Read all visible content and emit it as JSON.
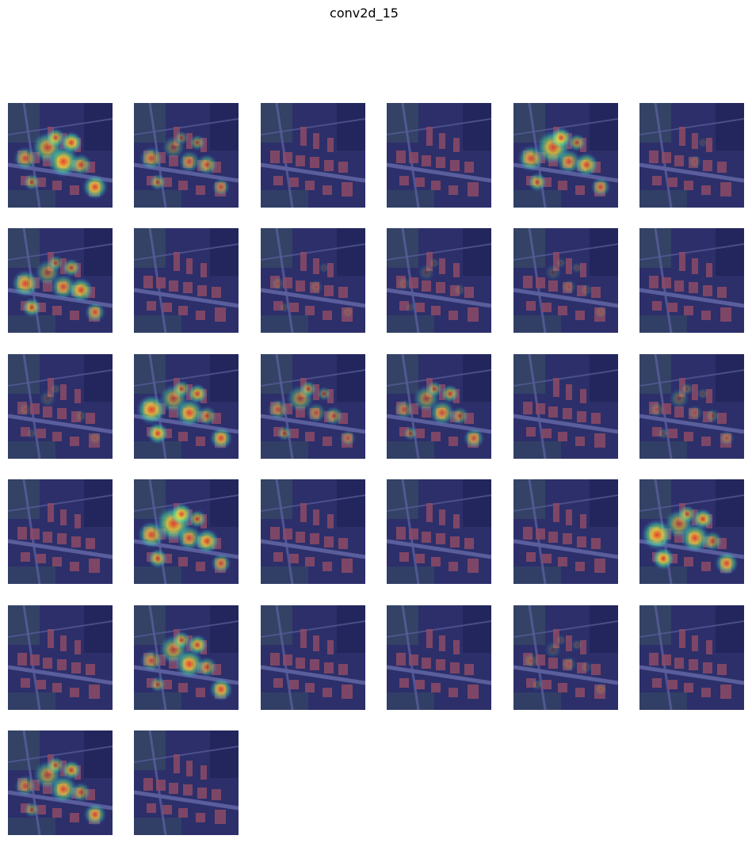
{
  "figure": {
    "title": "conv2d_15"
  },
  "overlay": {
    "colormap": "jet",
    "base_colors": {
      "background": "#2b2f55",
      "roof": "#b2544f",
      "road": "#6b6f9a",
      "vegetation": "#3c5a4a",
      "shadow": "#1c1f3d"
    }
  },
  "feature_maps": [
    {
      "index": 0,
      "activation": 0.85
    },
    {
      "index": 1,
      "activation": 0.55
    },
    {
      "index": 2,
      "activation": 0.05
    },
    {
      "index": 3,
      "activation": 0.05
    },
    {
      "index": 4,
      "activation": 0.8
    },
    {
      "index": 5,
      "activation": 0.08
    },
    {
      "index": 6,
      "activation": 0.75
    },
    {
      "index": 7,
      "activation": 0.05
    },
    {
      "index": 8,
      "activation": 0.1
    },
    {
      "index": 9,
      "activation": 0.1
    },
    {
      "index": 10,
      "activation": 0.12
    },
    {
      "index": 11,
      "activation": 0.05
    },
    {
      "index": 12,
      "activation": 0.12
    },
    {
      "index": 13,
      "activation": 0.8
    },
    {
      "index": 14,
      "activation": 0.5
    },
    {
      "index": 15,
      "activation": 0.6
    },
    {
      "index": 16,
      "activation": 0.05
    },
    {
      "index": 17,
      "activation": 0.25
    },
    {
      "index": 18,
      "activation": 0.05
    },
    {
      "index": 19,
      "activation": 0.85
    },
    {
      "index": 20,
      "activation": 0.05
    },
    {
      "index": 21,
      "activation": 0.05
    },
    {
      "index": 22,
      "activation": 0.05
    },
    {
      "index": 23,
      "activation": 0.85
    },
    {
      "index": 24,
      "activation": 0.05
    },
    {
      "index": 25,
      "activation": 0.75
    },
    {
      "index": 26,
      "activation": 0.05
    },
    {
      "index": 27,
      "activation": 0.05
    },
    {
      "index": 28,
      "activation": 0.15
    },
    {
      "index": 29,
      "activation": 0.05
    },
    {
      "index": 30,
      "activation": 0.7
    },
    {
      "index": 31,
      "activation": 0.05
    }
  ]
}
